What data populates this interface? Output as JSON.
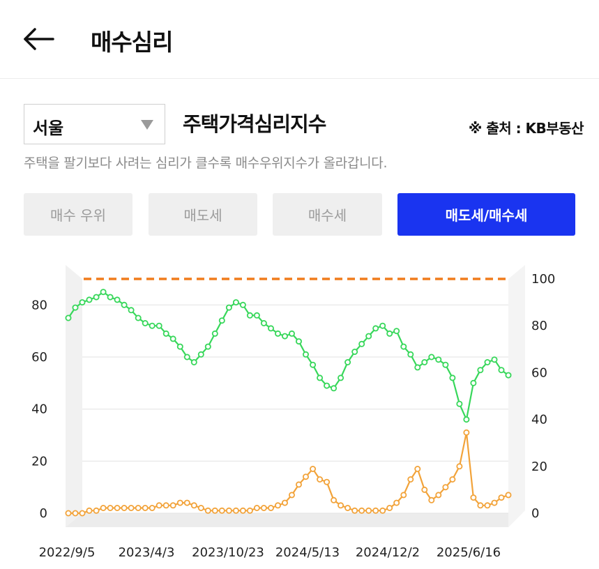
{
  "header": {
    "title": "매수심리",
    "back_icon": "arrow-left-icon"
  },
  "region_select": {
    "value": "서울"
  },
  "index": {
    "title": "주택가격심리지수",
    "source": "※ 출처 : KB부동산",
    "description": "주택을 팔기보다 사려는 심리가 클수록 매수우위지수가 올라갑니다."
  },
  "tabs": [
    {
      "label": "매수 우위",
      "active": false
    },
    {
      "label": "매도세",
      "active": false
    },
    {
      "label": "매수세",
      "active": false
    },
    {
      "label": "매도세/매수세",
      "active": true
    }
  ],
  "chart_data": {
    "type": "line",
    "x_labels": [
      "2022/9/5",
      "2023/4/3",
      "2023/10/23",
      "2024/5/13",
      "2024/12/2",
      "2025/6/16"
    ],
    "y_left": {
      "ticks": [
        "0",
        "20",
        "40",
        "60",
        "80"
      ],
      "range": [
        0,
        90
      ]
    },
    "y_right": {
      "ticks": [
        "0",
        "20",
        "40",
        "60",
        "80",
        "100"
      ],
      "range": [
        0,
        100
      ]
    },
    "reference_line": {
      "value": 100,
      "axis": "right",
      "color": "#f07c1c",
      "style": "dashed"
    },
    "series": [
      {
        "axis": "left",
        "color": "#37d75a",
        "values": [
          75,
          79,
          81,
          82,
          83,
          85,
          83,
          82,
          80,
          78,
          75,
          73,
          72,
          72,
          69,
          67,
          64,
          60,
          58,
          61,
          64,
          69,
          74,
          79,
          81,
          80,
          76,
          76,
          73,
          71,
          69,
          68,
          69,
          66,
          61,
          57,
          52,
          49,
          48,
          52,
          58,
          62,
          65,
          68,
          71,
          72,
          69,
          70,
          64,
          61,
          56,
          58,
          60,
          59,
          57,
          52,
          42,
          36,
          50,
          55,
          58,
          59,
          55,
          53
        ]
      },
      {
        "axis": "left",
        "color": "#f2a33a",
        "values": [
          0,
          0,
          0,
          1,
          1,
          2,
          2,
          2,
          2,
          2,
          2,
          2,
          2,
          3,
          3,
          3,
          4,
          4,
          3,
          2,
          1,
          1,
          1,
          1,
          1,
          1,
          1,
          2,
          2,
          2,
          3,
          4,
          7,
          11,
          14,
          17,
          13,
          12,
          5,
          3,
          2,
          1,
          1,
          1,
          1,
          1,
          2,
          4,
          7,
          13,
          17,
          9,
          5,
          7,
          10,
          13,
          18,
          31,
          6,
          3,
          3,
          4,
          6,
          7
        ]
      }
    ],
    "grid": true,
    "legend": "none"
  }
}
